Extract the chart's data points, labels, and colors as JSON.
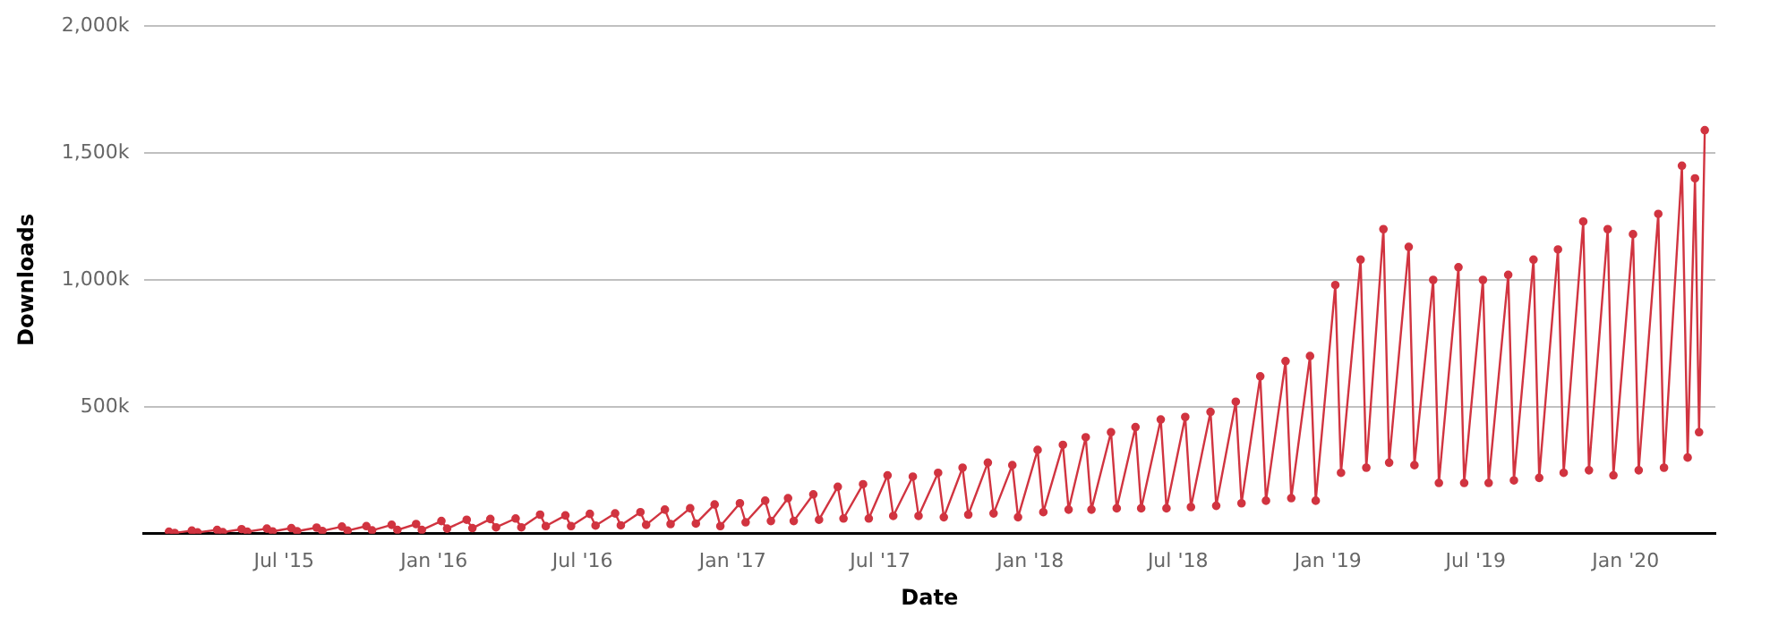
{
  "chart_data": {
    "type": "line",
    "xlabel": "Date",
    "ylabel": "Downloads",
    "grid": "y",
    "marker": "circle",
    "line_style": "solid",
    "legend": false,
    "xlim": [
      "2015-01-10",
      "2020-04-20"
    ],
    "xticks": [
      {
        "value": "2015-07-01",
        "label": "Jul '15"
      },
      {
        "value": "2016-01-01",
        "label": "Jan '16"
      },
      {
        "value": "2016-07-01",
        "label": "Jul '16"
      },
      {
        "value": "2017-01-01",
        "label": "Jan '17"
      },
      {
        "value": "2017-07-01",
        "label": "Jul '17"
      },
      {
        "value": "2018-01-01",
        "label": "Jan '18"
      },
      {
        "value": "2018-07-01",
        "label": "Jul '18"
      },
      {
        "value": "2019-01-01",
        "label": "Jan '19"
      },
      {
        "value": "2019-07-01",
        "label": "Jul '19"
      },
      {
        "value": "2020-01-01",
        "label": "Jan '20"
      }
    ],
    "ylim": [
      0,
      2000000
    ],
    "yticks": [
      {
        "value": 0,
        "label": null
      },
      {
        "value": 500000,
        "label": "500k"
      },
      {
        "value": 1000000,
        "label": "1,000k"
      },
      {
        "value": 1500000,
        "label": "1,500k"
      },
      {
        "value": 2000000,
        "label": "2,000k"
      }
    ],
    "x": [
      "2015-02-10",
      "2015-02-17",
      "2015-03-10",
      "2015-03-17",
      "2015-04-10",
      "2015-04-17",
      "2015-05-10",
      "2015-05-17",
      "2015-06-10",
      "2015-06-17",
      "2015-07-10",
      "2015-07-17",
      "2015-08-10",
      "2015-08-17",
      "2015-09-10",
      "2015-09-17",
      "2015-10-10",
      "2015-10-17",
      "2015-11-10",
      "2015-11-17",
      "2015-12-10",
      "2015-12-17",
      "2016-01-10",
      "2016-01-17",
      "2016-02-10",
      "2016-02-17",
      "2016-03-10",
      "2016-03-17",
      "2016-04-10",
      "2016-04-17",
      "2016-05-10",
      "2016-05-17",
      "2016-06-10",
      "2016-06-17",
      "2016-07-10",
      "2016-07-17",
      "2016-08-10",
      "2016-08-17",
      "2016-09-10",
      "2016-09-17",
      "2016-10-10",
      "2016-10-17",
      "2016-11-10",
      "2016-11-17",
      "2016-12-10",
      "2016-12-17",
      "2017-01-10",
      "2017-01-17",
      "2017-02-10",
      "2017-02-17",
      "2017-03-10",
      "2017-03-17",
      "2017-04-10",
      "2017-04-17",
      "2017-05-10",
      "2017-05-17",
      "2017-06-10",
      "2017-06-17",
      "2017-07-10",
      "2017-07-17",
      "2017-08-10",
      "2017-08-17",
      "2017-09-10",
      "2017-09-17",
      "2017-10-10",
      "2017-10-17",
      "2017-11-10",
      "2017-11-17",
      "2017-12-10",
      "2017-12-17",
      "2018-01-10",
      "2018-01-17",
      "2018-02-10",
      "2018-02-17",
      "2018-03-10",
      "2018-03-17",
      "2018-04-10",
      "2018-04-17",
      "2018-05-10",
      "2018-05-17",
      "2018-06-10",
      "2018-06-17",
      "2018-07-10",
      "2018-07-17",
      "2018-08-10",
      "2018-08-17",
      "2018-09-10",
      "2018-09-17",
      "2018-10-10",
      "2018-10-17",
      "2018-11-10",
      "2018-11-17",
      "2018-12-10",
      "2018-12-17",
      "2019-01-10",
      "2019-01-17",
      "2019-02-10",
      "2019-02-17",
      "2019-03-10",
      "2019-03-17",
      "2019-04-10",
      "2019-04-17",
      "2019-05-10",
      "2019-05-17",
      "2019-06-10",
      "2019-06-17",
      "2019-07-10",
      "2019-07-17",
      "2019-08-10",
      "2019-08-17",
      "2019-09-10",
      "2019-09-17",
      "2019-10-10",
      "2019-10-17",
      "2019-11-10",
      "2019-11-17",
      "2019-12-10",
      "2019-12-17",
      "2020-01-10",
      "2020-01-17",
      "2020-02-10",
      "2020-02-17",
      "2020-03-10",
      "2020-03-17",
      "2020-03-26",
      "2020-03-31",
      "2020-04-07"
    ],
    "series": [
      {
        "color": "#d13440",
        "values": [
          8000,
          3000,
          12000,
          5000,
          15000,
          6000,
          18000,
          8000,
          20000,
          9000,
          22000,
          10000,
          24000,
          11000,
          28000,
          12000,
          30000,
          13000,
          35000,
          15000,
          38000,
          15000,
          50000,
          20000,
          55000,
          22000,
          58000,
          25000,
          60000,
          25000,
          75000,
          30000,
          72000,
          30000,
          78000,
          32000,
          80000,
          33000,
          85000,
          35000,
          95000,
          38000,
          100000,
          40000,
          115000,
          30000,
          120000,
          45000,
          130000,
          50000,
          140000,
          50000,
          155000,
          55000,
          185000,
          60000,
          195000,
          60000,
          230000,
          70000,
          225000,
          70000,
          240000,
          65000,
          260000,
          75000,
          280000,
          80000,
          270000,
          65000,
          330000,
          85000,
          350000,
          95000,
          380000,
          95000,
          400000,
          100000,
          420000,
          100000,
          450000,
          100000,
          460000,
          105000,
          480000,
          110000,
          520000,
          120000,
          620000,
          130000,
          680000,
          140000,
          700000,
          130000,
          980000,
          240000,
          1080000,
          260000,
          1200000,
          280000,
          1130000,
          270000,
          1000000,
          200000,
          1050000,
          200000,
          1000000,
          200000,
          1020000,
          210000,
          1080000,
          220000,
          1120000,
          240000,
          1230000,
          250000,
          1200000,
          230000,
          1180000,
          250000,
          1260000,
          260000,
          1450000,
          300000,
          1400000,
          400000,
          1590000
        ]
      }
    ]
  }
}
